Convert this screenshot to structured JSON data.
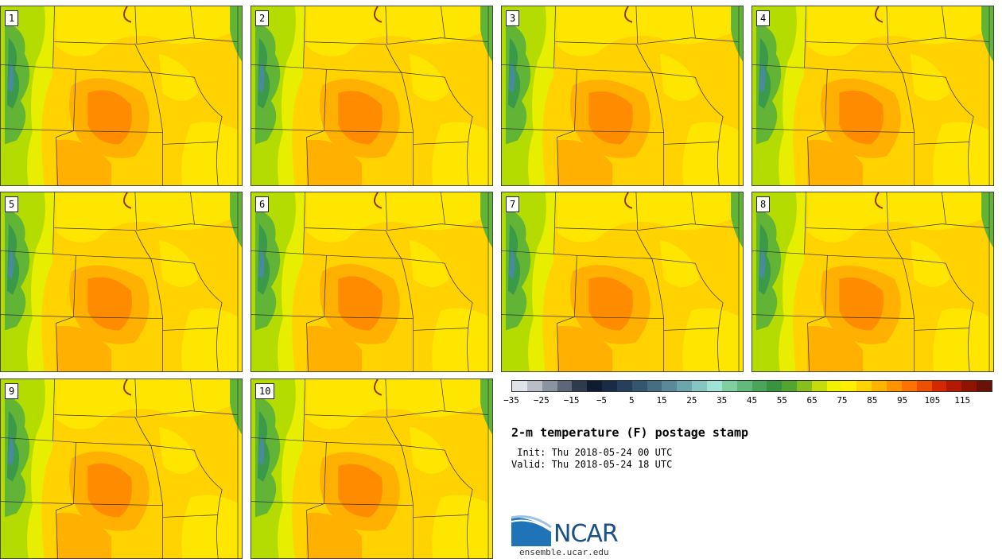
{
  "panels": [
    {
      "label": "1"
    },
    {
      "label": "2"
    },
    {
      "label": "3"
    },
    {
      "label": "4"
    },
    {
      "label": "5"
    },
    {
      "label": "6"
    },
    {
      "label": "7"
    },
    {
      "label": "8"
    },
    {
      "label": "9"
    },
    {
      "label": "10"
    }
  ],
  "colorbar": {
    "colors": [
      "#dfe3e8",
      "#b9bec6",
      "#8c93a0",
      "#5e6777",
      "#2e3a4d",
      "#0f1b30",
      "#182c45",
      "#24405c",
      "#345670",
      "#476d84",
      "#5a8a99",
      "#6da5ac",
      "#86c6c2",
      "#9fe3d7",
      "#7fcfa0",
      "#63b87b",
      "#4ba45a",
      "#3a943f",
      "#52a52e",
      "#86bf1e",
      "#c4dc0d",
      "#f2f200",
      "#ffee00",
      "#ffd200",
      "#ffb400",
      "#ff9400",
      "#ff7200",
      "#ef4f00",
      "#d32800",
      "#b51800",
      "#8e1400",
      "#6b1208"
    ],
    "tick_labels": [
      "−35",
      "−25",
      "−15",
      "−5",
      "5",
      "15",
      "25",
      "35",
      "45",
      "55",
      "65",
      "75",
      "85",
      "95",
      "105",
      "115"
    ]
  },
  "title": "2-m temperature (F) postage stamp",
  "init": " Init: Thu 2018-05-24 00 UTC",
  "valid": "Valid: Thu 2018-05-24 18 UTC",
  "logo": {
    "text": "NCAR",
    "url_text": "ensemble.ucar.edu"
  }
}
